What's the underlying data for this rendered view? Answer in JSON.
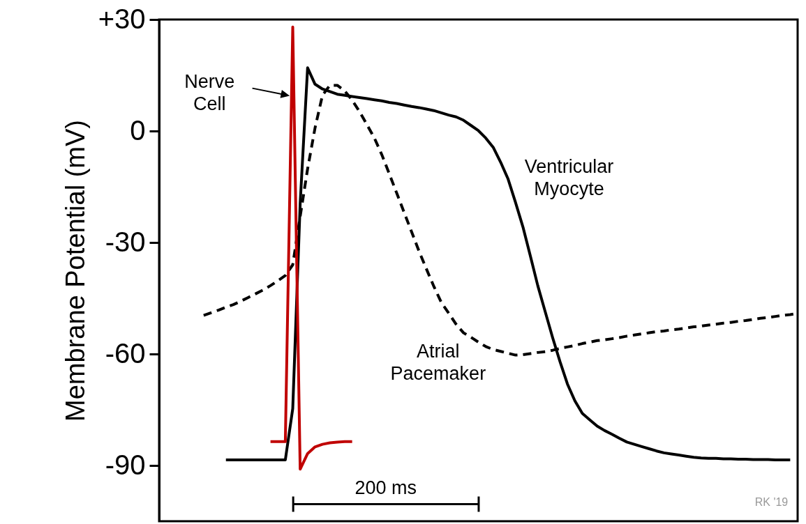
{
  "chart_data": {
    "type": "line",
    "ylabel": "Membrane Potential (mV)",
    "categories": [
      null,
      null,
      null,
      null,
      null,
      null,
      null,
      null,
      null,
      null,
      null,
      null,
      null,
      null,
      null,
      null,
      null,
      null,
      null,
      null,
      null,
      null,
      null,
      null,
      null,
      null,
      null,
      null,
      null,
      null,
      null,
      null,
      null,
      null,
      null,
      null,
      null,
      null,
      null,
      null,
      null,
      null,
      null,
      null,
      null,
      null,
      null,
      null,
      null,
      null,
      null,
      null,
      null,
      null,
      null,
      null,
      null,
      null,
      null,
      null,
      null,
      null,
      null,
      null,
      null,
      null,
      null,
      null,
      null,
      null,
      null,
      null,
      null,
      null,
      null,
      null,
      null,
      null,
      null,
      null,
      null,
      null,
      null,
      null,
      null,
      null,
      null
    ],
    "ylim": [
      -105,
      30
    ],
    "yticks": [
      {
        "value": 30,
        "label": "+30"
      },
      0,
      -30,
      -60,
      -90
    ],
    "tick_labels": "y",
    "grid": false,
    "series": [
      {
        "color": "#000000",
        "line_style": "dashed",
        "values": [
          null,
          null,
          null,
          null,
          null,
          null,
          -49.6,
          -48.9,
          -48.2,
          -47.4,
          -46.7,
          -45.8,
          -44.8,
          -43.8,
          -42.8,
          -41.6,
          -40.3,
          -38.9,
          -36,
          -23,
          -10.2,
          0.8,
          9.6,
          12.3,
          12.3,
          10.8,
          8.3,
          5.2,
          1.7,
          -1.9,
          -6.4,
          -11.5,
          -16.7,
          -21.9,
          -27.1,
          -32.3,
          -37.1,
          -41.8,
          -46.1,
          -49.0,
          -52.0,
          -54.3,
          -55.5,
          -56.8,
          -58.0,
          -58.8,
          -59.3,
          -59.8,
          -60.3,
          -60.2,
          -59.9,
          -59.6,
          -59.4,
          -59.0,
          -58.5,
          -58.1,
          -57.7,
          -57.2,
          -56.8,
          -56.4,
          -56.2,
          -55.9,
          -55.6,
          -55.2,
          -54.9,
          -54.6,
          -54.3,
          -54.0,
          -53.8,
          -53.5,
          -53.3,
          -53.0,
          -52.7,
          -52.5,
          -52.2,
          -52.0,
          -51.7,
          -51.5,
          -51.2,
          -51.0,
          -50.7,
          -50.4,
          -50.2,
          -49.9,
          -49.6,
          -49.4,
          -49.1
        ]
      },
      {
        "color": "#000000",
        "line_style": "solid",
        "values": [
          null,
          null,
          null,
          null,
          null,
          null,
          null,
          null,
          null,
          -88.5,
          -88.5,
          -88.5,
          -88.5,
          -88.5,
          -88.5,
          -88.5,
          -88.5,
          -88.5,
          -74.7,
          -19.5,
          17,
          12.6,
          11.3,
          10.6,
          9.9,
          9.6,
          9.3,
          9.0,
          8.7,
          8.4,
          8.1,
          7.7,
          7.4,
          7.0,
          6.6,
          6.3,
          5.9,
          5.5,
          4.9,
          4.3,
          3.8,
          2.9,
          1.5,
          0.1,
          -1.9,
          -4.4,
          -8.4,
          -12.9,
          -19.2,
          -25.8,
          -33.6,
          -41.6,
          -48.6,
          -55.6,
          -62.1,
          -68.1,
          -72.6,
          -76.0,
          -77.7,
          -79.4,
          -80.6,
          -81.6,
          -82.7,
          -83.7,
          -84.3,
          -84.9,
          -85.5,
          -86.1,
          -86.6,
          -86.9,
          -87.2,
          -87.5,
          -87.8,
          -88.0,
          -88.1,
          -88.1,
          -88.2,
          -88.2,
          -88.3,
          -88.3,
          -88.4,
          -88.4,
          -88.4,
          -88.5,
          -88.5,
          -88.5,
          null
        ]
      },
      {
        "color": "#c00000",
        "line_style": "solid",
        "values": [
          null,
          null,
          null,
          null,
          null,
          null,
          null,
          null,
          null,
          null,
          null,
          null,
          null,
          null,
          null,
          -83.6,
          -83.6,
          -83.6,
          28,
          -91,
          -86.8,
          -85,
          -84.3,
          -83.9,
          -83.7,
          -83.6,
          -83.6,
          null,
          null,
          null,
          null,
          null,
          null,
          null,
          null,
          null,
          null,
          null,
          null,
          null,
          null,
          null,
          null,
          null,
          null,
          null,
          null,
          null,
          null,
          null,
          null,
          null,
          null,
          null,
          null,
          null,
          null,
          null,
          null,
          null,
          null,
          null,
          null,
          null,
          null,
          null,
          null,
          null,
          null,
          null,
          null,
          null,
          null,
          null,
          null,
          null,
          null,
          null,
          null,
          null,
          null,
          null,
          null,
          null,
          null,
          null,
          null
        ]
      }
    ],
    "annotations": [
      "Nerve Cell",
      "Ventricular Myocyte",
      "Atrial Pacemaker",
      "200 ms",
      "RK '19"
    ]
  }
}
